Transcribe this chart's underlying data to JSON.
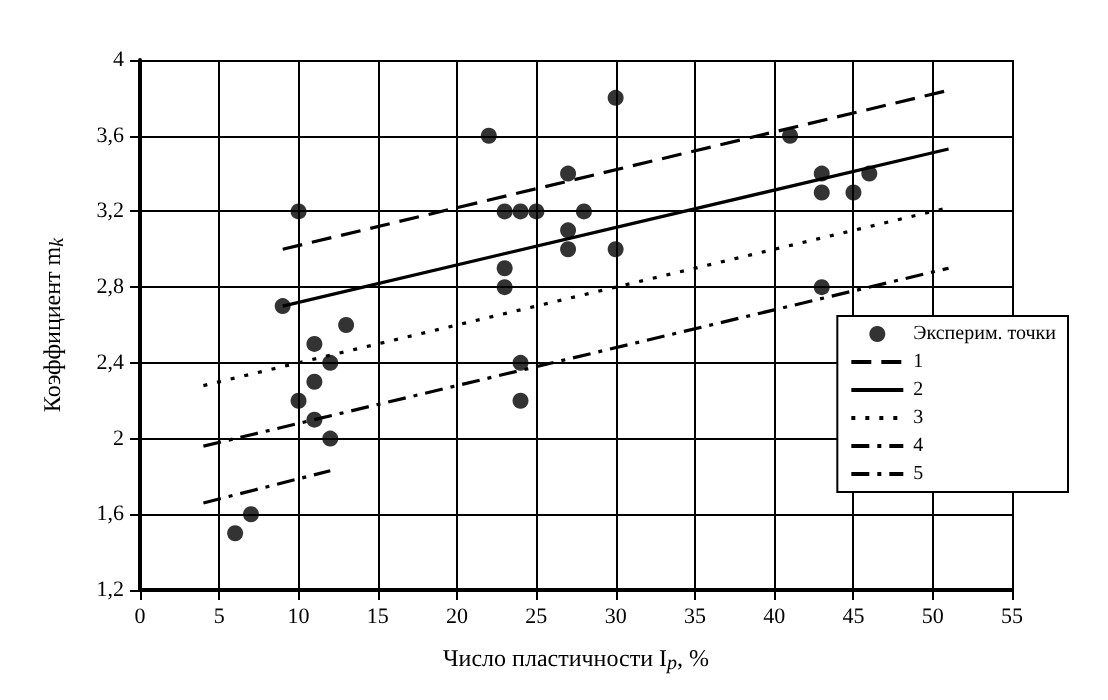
{
  "chart_data": {
    "type": "scatter",
    "xlabel": "Число пластичности I$_{p}$, %",
    "ylabel": "Коэффициент m$_{k}$",
    "xlim": [
      0,
      55
    ],
    "xticks": [
      0,
      5,
      10,
      15,
      20,
      25,
      30,
      35,
      40,
      45,
      50,
      55
    ],
    "ylim": [
      1.2,
      4
    ],
    "yticks": [
      {
        "value": 1.2,
        "label": "1,2"
      },
      {
        "value": 1.6,
        "label": "1,6"
      },
      {
        "value": 2,
        "label": "2"
      },
      {
        "value": 2.4,
        "label": "2,4"
      },
      {
        "value": 2.8,
        "label": "2,8"
      },
      {
        "value": 3.2,
        "label": "3,2"
      },
      {
        "value": 3.6,
        "label": "3,6"
      },
      {
        "value": 4,
        "label": "4"
      }
    ],
    "grid": true,
    "legend": "right",
    "series": [
      {
        "name": "Эксперим. точки",
        "marker": "circle",
        "color": "#000000",
        "x": [
          6,
          7,
          9,
          10,
          10,
          11,
          11,
          11,
          12,
          12,
          13,
          22,
          23,
          23,
          23,
          24,
          24,
          24,
          25,
          27,
          27,
          27,
          28,
          30,
          30,
          41,
          43,
          43,
          43,
          45,
          46
        ],
        "values": [
          1.5,
          1.6,
          2.7,
          3.2,
          2.2,
          2.5,
          2.3,
          2.1,
          2.4,
          2.0,
          2.6,
          3.6,
          3.2,
          2.9,
          2.8,
          3.2,
          2.4,
          2.2,
          3.2,
          3.4,
          3.1,
          3.0,
          3.2,
          3.8,
          3.0,
          3.6,
          3.4,
          3.3,
          2.8,
          3.3,
          3.4
        ]
      },
      {
        "name": "1",
        "type": "line",
        "line_style": "dashed",
        "color": "#000000",
        "x": [
          9,
          51
        ],
        "values": [
          3.0,
          3.84
        ]
      },
      {
        "name": "2",
        "type": "line",
        "line_style": "solid",
        "color": "#000000",
        "x": [
          9,
          51
        ],
        "values": [
          2.7,
          3.53
        ]
      },
      {
        "name": "3",
        "type": "line",
        "line_style": "dotted",
        "color": "#000000",
        "x": [
          4,
          51
        ],
        "values": [
          2.28,
          3.22
        ]
      },
      {
        "name": "4",
        "type": "line",
        "line_style": "dashdot",
        "color": "#000000",
        "x": [
          4,
          51
        ],
        "values": [
          1.96,
          2.9
        ]
      },
      {
        "name": "5",
        "type": "line",
        "line_style": "dashdot",
        "color": "#000000",
        "x": [
          4,
          12
        ],
        "values": [
          1.66,
          1.83
        ]
      }
    ]
  }
}
